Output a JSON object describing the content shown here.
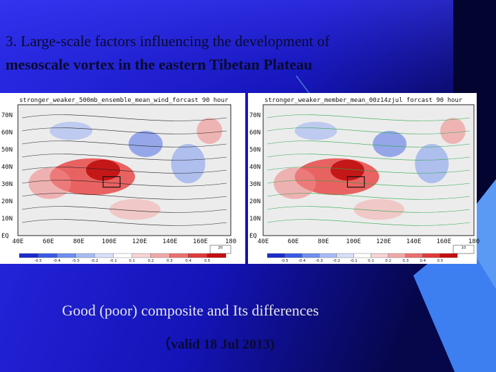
{
  "title": [
    "3. Large-scale factors influencing the development of",
    "mesoscale vortex in the eastern Tibetan Plateau"
  ],
  "maps": [
    {
      "title": "stronger_weaker_500mb_ensemble_mean_wind_forcast 90 hour",
      "lat_labels": [
        "70N",
        "60N",
        "50N",
        "40N",
        "30N",
        "20N",
        "10N",
        "EQ"
      ],
      "lon_labels": [
        "40E",
        "60E",
        "80E",
        "100E",
        "120E",
        "140E",
        "160E",
        "180"
      ],
      "vector_ref": "20",
      "colorbar_labels": [
        "-0.5",
        "-0.4",
        "-0.3",
        "-0.2",
        "-0.1",
        "0.1",
        "0.2",
        "0.3",
        "0.4",
        "0.5"
      ]
    },
    {
      "title": "stronger_weaker_member_mean_00z14zjul forcast 90 hour",
      "lat_labels": [
        "70N",
        "60N",
        "50N",
        "40N",
        "30N",
        "20N",
        "10N",
        "EQ"
      ],
      "lon_labels": [
        "40E",
        "60E",
        "80E",
        "100E",
        "120E",
        "140E",
        "160E",
        "180"
      ],
      "vector_ref": "10",
      "colorbar_labels": [
        "-0.5",
        "-0.4",
        "-0.3",
        "-0.2",
        "-0.1",
        "0.1",
        "0.2",
        "0.3",
        "0.4",
        "0.5"
      ]
    }
  ],
  "caption": "Good (poor) composite and Its differences",
  "valid": "（valid 18 Jul 2013)"
}
